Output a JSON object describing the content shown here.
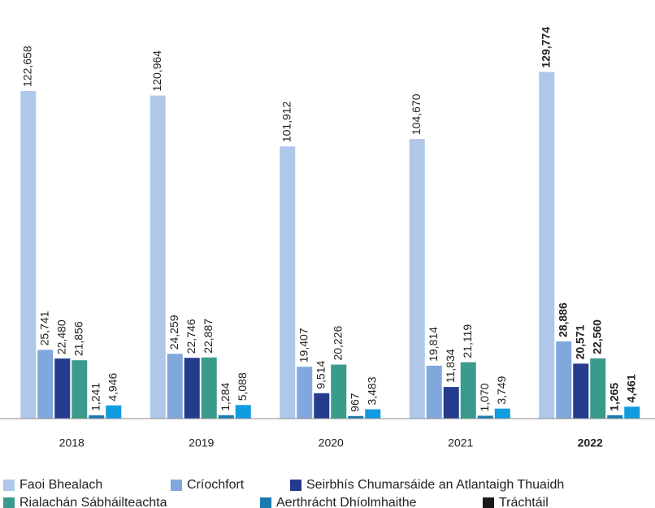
{
  "chart_data": {
    "type": "bar",
    "categories": [
      "2018",
      "2019",
      "2020",
      "2021",
      "2022"
    ],
    "highlight": 4,
    "ylim": [
      0,
      140000
    ],
    "series": [
      {
        "name": "Faoi Bhealach",
        "color": "#afc7e8",
        "legend_color": "#afc7e8",
        "values": [
          122658,
          120964,
          101912,
          104670,
          129774
        ],
        "value_labels": [
          "122,658",
          "120,964",
          "101,912",
          "104,670",
          "129,774"
        ]
      },
      {
        "name": "Críochfort",
        "color": "#80a8dc",
        "legend_color": "#80a8dc",
        "values": [
          25741,
          24259,
          19407,
          19814,
          28886
        ],
        "value_labels": [
          "25,741",
          "24,259",
          "19,407",
          "19,814",
          "28,886"
        ]
      },
      {
        "name": "Seirbhís Chumarsáide an Atlantaigh Thuaidh",
        "color": "#253b8e",
        "legend_color": "#253b8e",
        "values": [
          22480,
          22746,
          9514,
          11834,
          20571
        ],
        "value_labels": [
          "22,480",
          "22,746",
          "9,514",
          "11,834",
          "20,571"
        ]
      },
      {
        "name": "Rialachán Sábháilteachta",
        "color": "#3a9b8d",
        "legend_color": "#3a9b8d",
        "values": [
          21856,
          22887,
          20226,
          21119,
          22560
        ],
        "value_labels": [
          "21,856",
          "22,887",
          "20,226",
          "21,119",
          "22,560"
        ]
      },
      {
        "name": "Aerthrácht Dhíolmhaithe",
        "color": "#1a7bb1",
        "legend_color": "#1a7bb1",
        "values": [
          1241,
          1284,
          967,
          1070,
          1265
        ],
        "value_labels": [
          "1,241",
          "1,284",
          "967",
          "1,070",
          "1,265"
        ]
      },
      {
        "name": "Tráchtáil",
        "color": "#109ce0",
        "legend_color": "#1a1a1a",
        "values": [
          4946,
          5088,
          3483,
          3749,
          4461
        ],
        "value_labels": [
          "4,946",
          "5,088",
          "3,483",
          "3,749",
          "4,461"
        ]
      }
    ]
  }
}
